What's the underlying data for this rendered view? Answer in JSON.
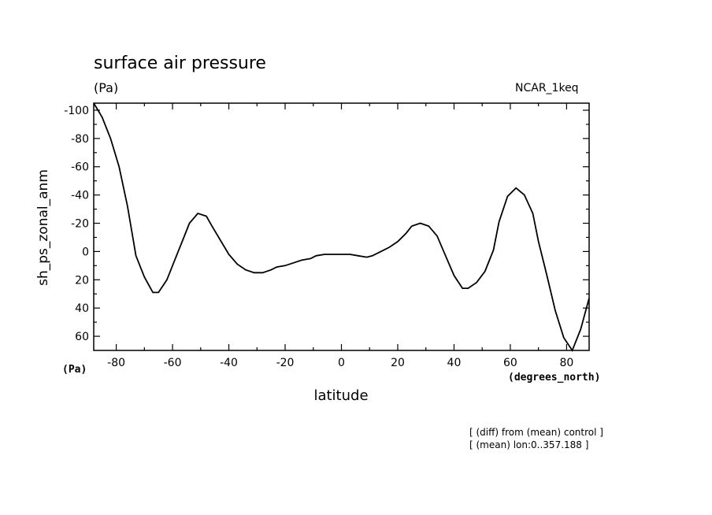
{
  "chart_data": {
    "type": "line",
    "title": "surface air pressure",
    "units_label": "(Pa)",
    "dataset": "NCAR_1keq",
    "xlabel": "latitude",
    "x_units": "(degrees_north)",
    "ylabel": "sh_ps_zonal_anm",
    "y_units": "(Pa)",
    "xlim": [
      -88,
      88
    ],
    "ylim": [
      70,
      -105
    ],
    "x_ticks": [
      -80,
      -60,
      -40,
      -20,
      0,
      20,
      40,
      60,
      80
    ],
    "y_ticks": [
      -100,
      -80,
      -60,
      -40,
      -20,
      0,
      20,
      40,
      60
    ],
    "notes": [
      "[ (diff) from (mean) control ]",
      "[ (mean) lon:0..357.188 ]"
    ],
    "series": [
      {
        "name": "sh_ps_zonal_anm",
        "x": [
          -88,
          -85,
          -82,
          -79,
          -76,
          -73,
          -70,
          -67,
          -65,
          -62,
          -59,
          -56,
          -54,
          -51,
          -48,
          -46,
          -43,
          -40,
          -37,
          -34,
          -31,
          -28,
          -25,
          -23,
          -20,
          -17,
          -14,
          -11,
          -9,
          -6,
          -3,
          0,
          3,
          6,
          9,
          11,
          14,
          17,
          20,
          23,
          25,
          28,
          31,
          34,
          37,
          40,
          43,
          45,
          48,
          51,
          54,
          56,
          59,
          62,
          65,
          68,
          70,
          73,
          76,
          79,
          82,
          85,
          88
        ],
        "y": [
          -105,
          -95,
          -80,
          -60,
          -32,
          3,
          18,
          29,
          29,
          20,
          5,
          -10,
          -20,
          -27,
          -25,
          -18,
          -8,
          2,
          9,
          13,
          15,
          15,
          13,
          11,
          10,
          8,
          6,
          5,
          3,
          2,
          2,
          2,
          2,
          3,
          4,
          3,
          0,
          -3,
          -7,
          -13,
          -18,
          -20,
          -18,
          -11,
          3,
          17,
          26,
          26,
          22,
          14,
          -1,
          -21,
          -39,
          -45,
          -40,
          -27,
          -7,
          17,
          42,
          61,
          70,
          55,
          33
        ]
      }
    ]
  }
}
